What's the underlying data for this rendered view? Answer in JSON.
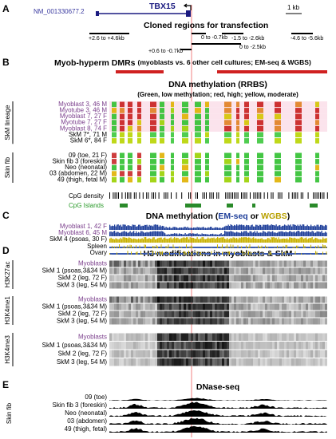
{
  "a": {
    "letter": "A",
    "transcript": "NM_001330677.2",
    "gene": "TBX15",
    "scale": "1 kb",
    "title": "Cloned regions for transfection",
    "regions": [
      "+2.6 to +4.6kb",
      "0 to -0.7kb",
      "-1.5 to -2.6kb",
      "-4.6 to -5.6kb",
      "0 to -2.5kb",
      "+0.6 to -0.7kb"
    ]
  },
  "b": {
    "letter": "B",
    "dmr_title": "Myob-hyperm DMRs",
    "dmr_note": "(myoblasts vs. 6 other cell cultures; EM-seq & WGBS)",
    "title": "DNA methylation (RRBS)",
    "subtitle": "(Green, low methylation; red, high; yellow, moderate)",
    "groups": [
      {
        "label": "SkM lineage",
        "rows": [
          "Myoblast 3, 46 M",
          "Myotube 3, 46 M",
          "Myoblast 7, 27 F",
          "Myotube 7, 27 F",
          "Myoblast 8, 74 F",
          "SkM 7*, 71 M",
          "SkM 6*, 84 F"
        ]
      },
      {
        "label": "Skin fib",
        "rows": [
          "09 (toe, 21 F)",
          "Skin fib 3 (foreskin)",
          "Neo (neonatal)",
          "03 (abdomen, 22 M)",
          "49 (thigh, fetal M)"
        ]
      }
    ],
    "cpg_density": "CpG density",
    "cpg_islands": "CpG Islands"
  },
  "c": {
    "letter": "C",
    "title_parts": [
      "DNA methylation (",
      "EM-seq",
      " or ",
      "WGBS",
      ")"
    ],
    "rows": [
      "Myoblast 1, 42 F",
      "Myoblast 6, 45 M",
      "SkM 4 (psoas, 30 F)",
      "Spleen",
      "Ovary"
    ]
  },
  "d": {
    "letter": "D",
    "title": "H3 modifications in myoblasts & SkM",
    "groups": [
      {
        "label": "H3K27ac",
        "rows": [
          "Myoblasts",
          "SkM 1 (psoas,3&34 M)",
          "SkM 2 (leg, 72 F)",
          "SkM 3 (leg, 54 M)"
        ]
      },
      {
        "label": "H3K4me1",
        "rows": [
          "Myoblasts",
          "SkM 1 (psoas,3&34 M)",
          "SkM 2 (leg, 72 F)",
          "SkM 3 (leg, 54 M)"
        ]
      },
      {
        "label": "H3K4me3",
        "rows": [
          "Myoblasts",
          "SkM 1 (psoas,3&34 M)",
          "SkM 2 (leg, 72 F)",
          "SkM 3 (leg, 54 M)"
        ]
      }
    ]
  },
  "e": {
    "letter": "E",
    "title": "DNase-seq",
    "label": "Skin fib",
    "rows": [
      "09 (toe)",
      "Skin fib 3 (foreskin)",
      "Neo (neonatal)",
      "03 (abdomen)",
      "49 (thigh, fetal)"
    ]
  }
}
